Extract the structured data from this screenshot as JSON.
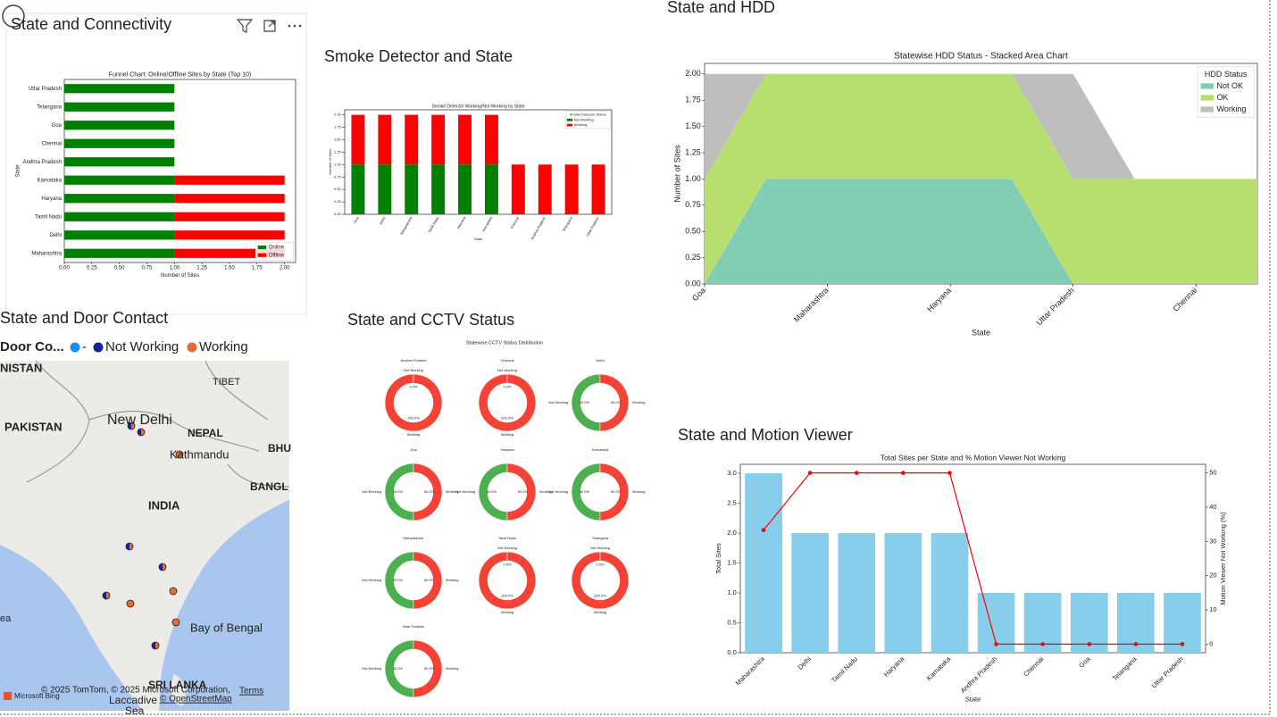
{
  "chart_data": [
    {
      "type": "hbar",
      "stacked": true,
      "panel_title": "State and Connectivity",
      "title": "Funnel Chart: Online/Offline Sites by State (Top 10)",
      "categories": [
        "Maharashtra",
        "Delhi",
        "Tamil Nadu",
        "Haryana",
        "Karnataka",
        "Andhra Pradesh",
        "Chennai",
        "Goa",
        "Telangana",
        "Uttar Pradesh"
      ],
      "series": [
        {
          "name": "Online",
          "color": "#008000",
          "values": [
            1,
            1,
            1,
            1,
            1,
            1,
            1,
            1,
            1,
            1
          ]
        },
        {
          "name": "Offline",
          "color": "#ff0000",
          "values": [
            1,
            1,
            1,
            1,
            1,
            0,
            0,
            0,
            0,
            0
          ]
        }
      ],
      "xlim": [
        0,
        2.1
      ],
      "xticks": [
        {
          "value": 0,
          "label": "0.00"
        },
        0.25,
        {
          "value": 0.5,
          "label": "0.50"
        },
        0.75,
        {
          "value": 1,
          "label": "1.00"
        },
        1.25,
        {
          "value": 1.5,
          "label": "1.50"
        },
        1.75,
        {
          "value": 2,
          "label": "2.00"
        }
      ],
      "xlabel": "Number of Sites",
      "ylabel": "State",
      "legend": "lower right"
    },
    {
      "type": "bar",
      "stacked": true,
      "panel_title": "Smoke Detector and State",
      "title": "Smoke Detector Working/Not Working by State",
      "categories": [
        "Goa",
        "Delhi",
        "Maharashtra",
        "Tamil Nadu",
        "Haryana",
        "Karnataka",
        "Chennai",
        "Andhra Pradesh",
        "Telangana",
        "Uttar Pradesh"
      ],
      "series": [
        {
          "name": "Not Working",
          "color": "#008000",
          "values": [
            1,
            1,
            1,
            1,
            1,
            1,
            0,
            0,
            0,
            0
          ]
        },
        {
          "name": "Working",
          "color": "#ff0000",
          "values": [
            1,
            1,
            1,
            1,
            1,
            1,
            1,
            1,
            1,
            1
          ]
        }
      ],
      "ylim": [
        0,
        2.1
      ],
      "yticks": [
        {
          "value": 0,
          "label": "0.00"
        },
        0.25,
        {
          "value": 0.5,
          "label": "0.50"
        },
        0.75,
        {
          "value": 1,
          "label": "1.00"
        },
        1.25,
        {
          "value": 1.5,
          "label": "1.50"
        },
        1.75,
        {
          "value": 2,
          "label": "2.00"
        }
      ],
      "xlabel": "State",
      "ylabel": "Number of Sites",
      "legend": "upper right",
      "legend_title": "Smoke Detector Status"
    },
    {
      "type": "area",
      "stacked": true,
      "panel_title": "State and HDD",
      "title": "Statewise HDD Status - Stacked Area Chart",
      "categories": [
        "Goa",
        null,
        "Maharashtra",
        null,
        "Haryana",
        null,
        "Uttar Pradesh",
        null,
        "Chennai",
        null
      ],
      "series": [
        {
          "name": "Not OK",
          "color": "#80ceb6",
          "values": [
            0,
            1,
            1,
            1,
            1,
            1,
            0,
            0,
            0,
            0
          ]
        },
        {
          "name": "OK",
          "color": "#b7df70",
          "values": [
            1,
            1,
            1,
            1,
            1,
            1,
            1,
            1,
            1,
            1
          ]
        },
        {
          "name": "Working",
          "color": "#bebebe",
          "values": [
            1,
            0,
            0,
            0,
            0,
            0,
            1,
            0,
            0,
            0
          ]
        }
      ],
      "ylim": [
        0,
        2.1
      ],
      "yticks": [
        {
          "value": 0,
          "label": "0.00"
        },
        0.25,
        {
          "value": 0.5,
          "label": "0.50"
        },
        0.75,
        {
          "value": 1,
          "label": "1.00"
        },
        1.25,
        {
          "value": 1.5,
          "label": "1.50"
        },
        1.75,
        {
          "value": 2,
          "label": "2.00"
        }
      ],
      "xlabel": "State",
      "ylabel": "Number of Sites",
      "legend": "upper right",
      "legend_title": "HDD Status"
    },
    {
      "type": "donut",
      "panel_title": "State and CCTV Status",
      "title": "Statewise CCTV Status Distribution",
      "colors": [
        "#4caf50",
        "#f44336"
      ],
      "pies": [
        {
          "title": "Andhra Pradesh",
          "labels": [
            "Not Working",
            "Working"
          ],
          "values": [
            0,
            100
          ],
          "value_labels": [
            "0.0%",
            "100.0%"
          ]
        },
        {
          "title": "Chennai",
          "labels": [
            "Not Working",
            "Working"
          ],
          "values": [
            0,
            100
          ],
          "value_labels": [
            "0.0%",
            "100.0%"
          ]
        },
        {
          "title": "Delhi",
          "labels": [
            "Not Working",
            "Working"
          ],
          "values": [
            50,
            50
          ],
          "value_labels": [
            "50.0%",
            "50.0%"
          ]
        },
        {
          "title": "Goa",
          "labels": [
            "Not Working",
            "Working"
          ],
          "values": [
            50,
            50
          ],
          "value_labels": [
            "50.0%",
            "50.0%"
          ]
        },
        {
          "title": "Haryana",
          "labels": [
            "Not Working",
            "Working"
          ],
          "values": [
            50,
            50
          ],
          "value_labels": [
            "50.0%",
            "50.0%"
          ]
        },
        {
          "title": "Karnataka",
          "labels": [
            "Not Working",
            "Working"
          ],
          "values": [
            50,
            50
          ],
          "value_labels": [
            "50.0%",
            "50.0%"
          ]
        },
        {
          "title": "Maharashtra",
          "labels": [
            "Not Working",
            "Working"
          ],
          "values": [
            50,
            50
          ],
          "value_labels": [
            "50.0%",
            "50.0%"
          ]
        },
        {
          "title": "Tamil Nadu",
          "labels": [
            "Not Working",
            "Working"
          ],
          "values": [
            0,
            100
          ],
          "value_labels": [
            "0.0%",
            "100.0%"
          ]
        },
        {
          "title": "Telangana",
          "labels": [
            "Not Working",
            "Working"
          ],
          "values": [
            0,
            100
          ],
          "value_labels": [
            "0.0%",
            "100.0%"
          ]
        },
        {
          "title": "Uttar Pradesh",
          "labels": [
            "Not Working",
            "Working"
          ],
          "values": [
            50,
            50
          ],
          "value_labels": [
            "50.0%",
            "50.0%"
          ]
        }
      ]
    },
    {
      "type": "bar",
      "panel_title": "State and Motion Viewer",
      "title": "Total Sites per State and % Motion Viewer Not Working",
      "categories": [
        "Maharashtra",
        "Delhi",
        "Tamil Nadu",
        "Haryana",
        "Karnataka",
        "Andhra Pradesh",
        "Chennai",
        "Goa",
        "Telangana",
        "Uttar Pradesh"
      ],
      "series": [
        {
          "color": "#87ceeb",
          "values": [
            3,
            2,
            2,
            2,
            2,
            1,
            1,
            1,
            1,
            1
          ]
        },
        {
          "color": "#ff0000",
          "axis": "y2",
          "values": [
            33.3,
            50,
            50,
            50,
            50,
            0,
            0,
            0,
            0,
            0
          ]
        }
      ],
      "ylim": [
        0,
        3.15
      ],
      "yticks": [
        {
          "value": 0,
          "label": "0.0"
        },
        0.5,
        {
          "value": 1,
          "label": "1.0"
        },
        1.5,
        {
          "value": 2,
          "label": "2.0"
        },
        2.5,
        {
          "value": 3,
          "label": "3.0"
        }
      ],
      "y2lim": [
        -2.5,
        52.5
      ],
      "y2ticks": [
        0,
        10,
        20,
        30,
        40,
        50
      ],
      "xlabel": "State",
      "ylabel": "Total Sites",
      "y2label": "Motion Viewer Not Working (%)",
      "ylabel_color": "#87ceeb",
      "y2label_color": "#ff0000"
    }
  ],
  "map": {
    "title": "State and Door Contact",
    "legend_title": "Door Co...",
    "legend": [
      {
        "label": "-",
        "color": "#118dff"
      },
      {
        "label": "Not Working",
        "color": "#12239e"
      },
      {
        "label": "Working",
        "color": "#e66c37"
      }
    ],
    "place_labels": [
      "NISTAN",
      "TIBET",
      "PAKISTAN",
      "New Delhi",
      "NEPAL",
      "Kathmandu",
      "BHU",
      "BANGL",
      "INDIA",
      "Bay of Bengal",
      "ea",
      "SRI LANKA",
      "Laccadive",
      "Sea"
    ],
    "attribution": "© 2025 TomTom, © 2025 Microsoft Corporation,",
    "terms": "Terms",
    "osm": "© OpenStreetMap",
    "bing": "Microsoft Bing"
  }
}
